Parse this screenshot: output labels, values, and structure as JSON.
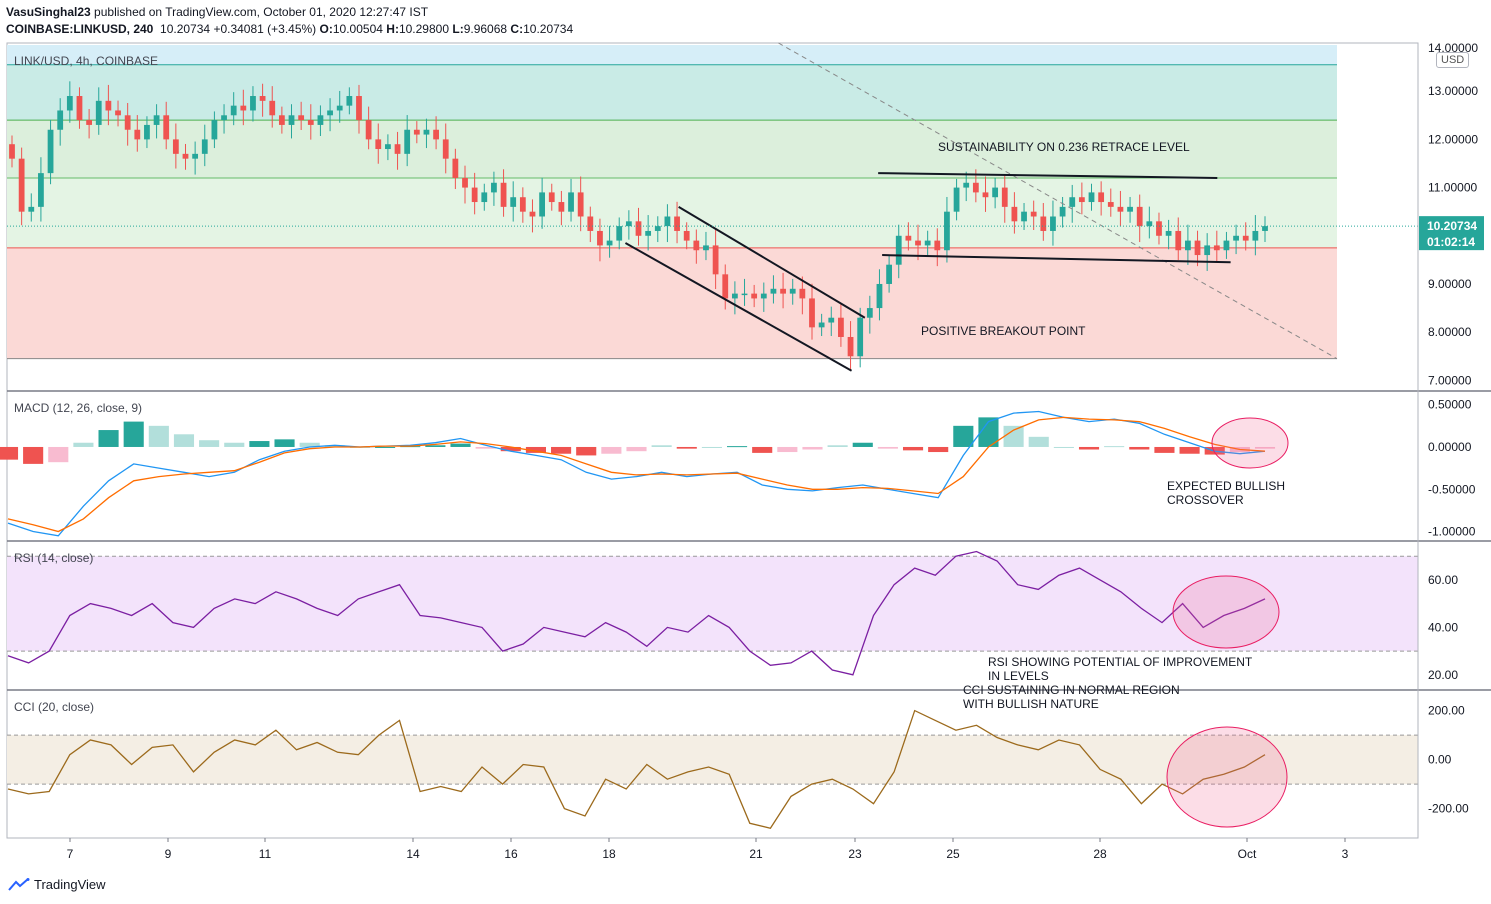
{
  "header": {
    "author": "VasuSinghal23",
    "published_text": "published on TradingView.com, October 01, 2020 12:27:47 IST",
    "symbol_line": "COINBASE:LINKUSD, 240",
    "last": "10.20734",
    "change": "+0.34081 (+3.45%)",
    "ohlc_o": "10.00504",
    "ohlc_h": "10.29800",
    "ohlc_l": "9.96068",
    "ohlc_c": "10.20734"
  },
  "footer": {
    "brand": "TradingView"
  },
  "chart_data": [
    {
      "type": "candlestick",
      "title": "LINK/USD, 4h, COINBASE",
      "currency_label": "USD",
      "y_ticks": [
        "13.00000",
        "12.00000",
        "11.00000",
        "10.00000",
        "9.00000",
        "8.00000",
        "7.00000"
      ],
      "y_tick_values": [
        13,
        12,
        11,
        10,
        9,
        8,
        7
      ],
      "top_tick": "14.00000",
      "ylim": [
        6.8,
        14.0
      ],
      "last_price_label": "10.20734",
      "countdown_label": "01:02:14",
      "x_ticks": [
        "7",
        "9",
        "11",
        "14",
        "16",
        "18",
        "21",
        "23",
        "25",
        "28",
        "Oct",
        "3"
      ],
      "closes": [
        11.6,
        10.5,
        10.6,
        11.3,
        12.2,
        12.6,
        12.9,
        12.4,
        12.3,
        12.8,
        12.6,
        12.5,
        12.2,
        12.0,
        12.3,
        12.5,
        12.0,
        11.7,
        11.6,
        11.7,
        12.0,
        12.4,
        12.5,
        12.7,
        12.6,
        12.9,
        12.8,
        12.5,
        12.3,
        12.5,
        12.4,
        12.3,
        12.5,
        12.6,
        12.7,
        12.9,
        12.4,
        12.0,
        11.8,
        11.9,
        11.7,
        12.2,
        12.1,
        12.2,
        12.0,
        11.6,
        11.2,
        11.0,
        10.7,
        10.9,
        11.1,
        10.6,
        10.8,
        10.5,
        10.4,
        10.9,
        10.7,
        10.5,
        10.9,
        10.4,
        10.1,
        9.8,
        9.9,
        10.2,
        10.3,
        10.0,
        10.1,
        10.2,
        10.4,
        10.1,
        9.9,
        9.7,
        9.8,
        9.2,
        8.7,
        8.8,
        8.8,
        8.7,
        8.8,
        8.9,
        8.8,
        8.9,
        8.7,
        8.1,
        8.2,
        8.3,
        7.9,
        7.5,
        8.3,
        8.5,
        9.0,
        9.4,
        10.0,
        9.9,
        9.8,
        9.9,
        9.7,
        10.5,
        11.0,
        11.1,
        10.9,
        10.8,
        11.0,
        10.6,
        10.3,
        10.5,
        10.4,
        10.1,
        10.4,
        10.6,
        10.8,
        10.7,
        10.9,
        10.7,
        10.6,
        10.5,
        10.6,
        10.2,
        10.3,
        10.0,
        10.1,
        9.7,
        9.9,
        9.6,
        9.8,
        9.7,
        9.9,
        10.0,
        9.9,
        10.1,
        10.2
      ],
      "fib_levels": [
        {
          "value": 13.55,
          "color": "#26a69a"
        },
        {
          "value": 12.4,
          "color": "#4caf50"
        },
        {
          "value": 11.2,
          "color": "#66bb6a"
        },
        {
          "value": 9.75,
          "color": "#ef5350"
        },
        {
          "value": 7.45,
          "color": "#888888"
        }
      ],
      "annotations": [
        {
          "text": "SUSTAINABILITY ON 0.236 RETRACE LEVEL"
        },
        {
          "text": "POSITIVE BREAKOUT POINT"
        }
      ],
      "trendlines": [
        {
          "from": [
            0.58,
            14.0
          ],
          "to": [
            1.0,
            7.45
          ],
          "style": "dashed"
        },
        {
          "from": [
            0.465,
            9.85
          ],
          "to": [
            0.635,
            7.2
          ],
          "style": "solid"
        },
        {
          "from": [
            0.505,
            10.6
          ],
          "to": [
            0.645,
            8.3
          ],
          "style": "solid"
        },
        {
          "from": [
            0.655,
            11.3
          ],
          "to": [
            0.91,
            11.2
          ],
          "style": "solid"
        },
        {
          "from": [
            0.658,
            9.6
          ],
          "to": [
            0.92,
            9.45
          ],
          "style": "solid"
        }
      ]
    },
    {
      "type": "line",
      "title": "MACD (12, 26, close, 9)",
      "y_ticks": [
        "0.50000",
        "0.00000",
        "-0.50000",
        "-1.00000"
      ],
      "y_tick_values": [
        0.5,
        0,
        -0.5,
        -1.0
      ],
      "ylim": [
        -1.1,
        0.65
      ],
      "series": [
        {
          "values": [
            -0.9,
            -1.0,
            -1.05,
            -0.7,
            -0.4,
            -0.2,
            -0.25,
            -0.3,
            -0.35,
            -0.3,
            -0.15,
            -0.05,
            0.0,
            0.02,
            0.0,
            0.01,
            0.02,
            0.05,
            0.1,
            0.02,
            -0.05,
            -0.1,
            -0.15,
            -0.3,
            -0.38,
            -0.35,
            -0.3,
            -0.35,
            -0.32,
            -0.3,
            -0.45,
            -0.5,
            -0.52,
            -0.48,
            -0.45,
            -0.5,
            -0.55,
            -0.6,
            -0.1,
            0.3,
            0.4,
            0.42,
            0.35,
            0.3,
            0.33,
            0.28,
            0.15,
            0.05,
            -0.05,
            -0.08,
            -0.05
          ]
        },
        {
          "values": [
            -0.85,
            -0.92,
            -1.0,
            -0.85,
            -0.6,
            -0.4,
            -0.35,
            -0.32,
            -0.3,
            -0.28,
            -0.18,
            -0.07,
            -0.02,
            0.0,
            0.0,
            0.01,
            0.01,
            0.03,
            0.06,
            0.04,
            0.0,
            -0.05,
            -0.1,
            -0.2,
            -0.3,
            -0.33,
            -0.32,
            -0.33,
            -0.32,
            -0.31,
            -0.38,
            -0.45,
            -0.5,
            -0.5,
            -0.48,
            -0.49,
            -0.52,
            -0.55,
            -0.35,
            0.0,
            0.2,
            0.32,
            0.35,
            0.33,
            0.32,
            0.3,
            0.22,
            0.12,
            0.03,
            -0.03,
            -0.05
          ]
        }
      ],
      "histogram": [
        -0.15,
        -0.2,
        -0.18,
        0.05,
        0.2,
        0.3,
        0.25,
        0.15,
        0.08,
        0.05,
        0.07,
        0.09,
        0.05,
        0.02,
        0.0,
        0.0,
        0.01,
        0.02,
        0.04,
        -0.02,
        -0.05,
        -0.07,
        -0.08,
        -0.1,
        -0.08,
        -0.05,
        0.02,
        -0.02,
        0.0,
        0.01,
        -0.07,
        -0.06,
        -0.03,
        0.02,
        0.05,
        -0.02,
        -0.04,
        -0.06,
        0.25,
        0.35,
        0.25,
        0.12,
        0.0,
        -0.03,
        0.01,
        -0.03,
        -0.07,
        -0.08,
        -0.09,
        -0.06,
        -0.02
      ],
      "annotations": [
        {
          "text": "EXPECTED BULLISH"
        },
        {
          "text": "CROSSOVER"
        }
      ]
    },
    {
      "type": "line",
      "title": "RSI (14, close)",
      "y_ticks": [
        "60.00",
        "40.00",
        "20.00"
      ],
      "y_tick_values": [
        60,
        40,
        20
      ],
      "ylim": [
        14,
        76
      ],
      "band": [
        30,
        70
      ],
      "series": [
        {
          "values": [
            28,
            25,
            30,
            45,
            50,
            48,
            45,
            50,
            42,
            40,
            48,
            52,
            50,
            55,
            52,
            48,
            45,
            52,
            55,
            58,
            45,
            44,
            42,
            40,
            30,
            33,
            40,
            38,
            36,
            42,
            38,
            32,
            40,
            38,
            45,
            40,
            30,
            24,
            25,
            30,
            22,
            20,
            45,
            58,
            65,
            62,
            70,
            72,
            68,
            58,
            56,
            62,
            65,
            60,
            55,
            48,
            42,
            50,
            40,
            45,
            48,
            52
          ]
        }
      ],
      "annotations": [
        {
          "text": "RSI SHOWING POTENTIAL OF IMPROVEMENT"
        },
        {
          "text": "IN LEVELS"
        }
      ]
    },
    {
      "type": "line",
      "title": "CCI (20, close)",
      "y_ticks": [
        "200.00",
        "0.00",
        "-200.00"
      ],
      "y_tick_values": [
        200,
        0,
        -200
      ],
      "ylim": [
        -320,
        280
      ],
      "band": [
        -100,
        100
      ],
      "series": [
        {
          "values": [
            -120,
            -140,
            -130,
            20,
            80,
            60,
            -20,
            50,
            60,
            -50,
            30,
            80,
            60,
            120,
            40,
            70,
            30,
            20,
            100,
            160,
            -130,
            -110,
            -130,
            -30,
            -100,
            -20,
            -30,
            -200,
            -230,
            -80,
            -120,
            -20,
            -80,
            -50,
            -30,
            -60,
            -260,
            -280,
            -150,
            -100,
            -80,
            -120,
            -180,
            -50,
            200,
            160,
            120,
            140,
            90,
            60,
            40,
            80,
            60,
            -40,
            -80,
            -180,
            -100,
            -140,
            -80,
            -60,
            -30,
            20
          ]
        }
      ],
      "annotations": [
        {
          "text": "CCI SUSTAINING IN NORMAL REGION"
        },
        {
          "text": "WITH BULLISH NATURE"
        }
      ]
    }
  ]
}
